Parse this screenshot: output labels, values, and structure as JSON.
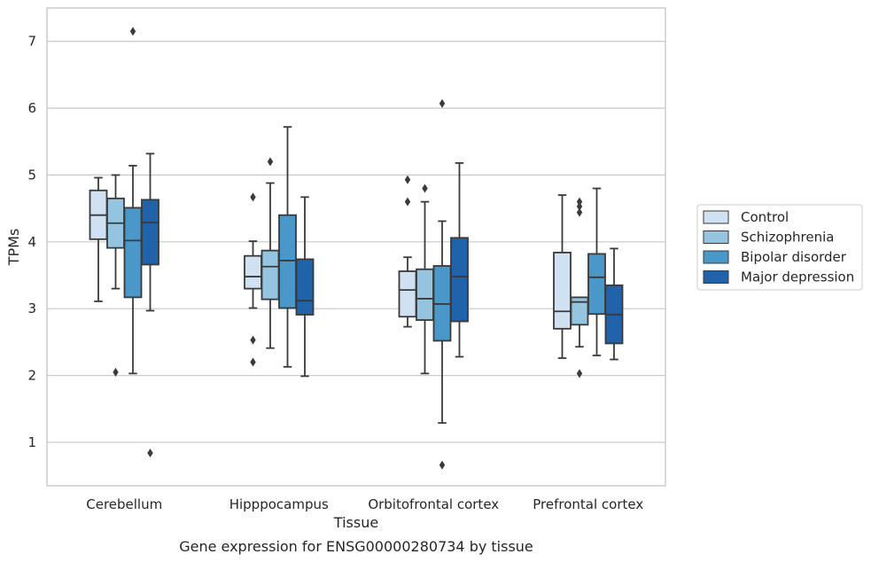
{
  "chart_data": {
    "type": "box",
    "xlabel": "Tissue",
    "ylabel": "TPMs",
    "caption": "Gene expression for ENSG00000280734 by tissue",
    "ylim": [
      0.35,
      7.5
    ],
    "yticks": [
      1,
      2,
      3,
      4,
      5,
      6,
      7
    ],
    "grid": "horizontal",
    "legend_position": "right",
    "categories": [
      "Cerebellum",
      "Hipppocampus",
      "Orbitofrontal cortex",
      "Prefrontal cortex"
    ],
    "series": [
      {
        "name": "Control",
        "color": "#d0e1f2",
        "boxes": [
          {
            "whislo": 3.11,
            "q1": 4.04,
            "med": 4.4,
            "q3": 4.77,
            "whishi": 4.96,
            "fliers": []
          },
          {
            "whislo": 3.01,
            "q1": 3.3,
            "med": 3.48,
            "q3": 3.79,
            "whishi": 4.01,
            "fliers": [
              4.67,
              2.53,
              2.2
            ]
          },
          {
            "whislo": 2.73,
            "q1": 2.88,
            "med": 3.28,
            "q3": 3.56,
            "whishi": 3.77,
            "fliers": [
              4.93,
              4.6
            ]
          },
          {
            "whislo": 2.26,
            "q1": 2.7,
            "med": 2.96,
            "q3": 3.84,
            "whishi": 4.7,
            "fliers": []
          }
        ]
      },
      {
        "name": "Schizophrenia",
        "color": "#94c4df",
        "boxes": [
          {
            "whislo": 3.3,
            "q1": 3.91,
            "med": 4.28,
            "q3": 4.65,
            "whishi": 5.0,
            "fliers": [
              2.05
            ]
          },
          {
            "whislo": 2.41,
            "q1": 3.14,
            "med": 3.63,
            "q3": 3.87,
            "whishi": 4.88,
            "fliers": [
              5.2
            ]
          },
          {
            "whislo": 2.03,
            "q1": 2.83,
            "med": 3.15,
            "q3": 3.59,
            "whishi": 4.6,
            "fliers": [
              4.8
            ]
          },
          {
            "whislo": 2.43,
            "q1": 2.76,
            "med": 3.1,
            "q3": 3.17,
            "whishi": 3.17,
            "fliers": [
              4.6,
              4.53,
              4.44,
              2.03
            ]
          }
        ]
      },
      {
        "name": "Bipolar disorder",
        "color": "#4a98c9",
        "boxes": [
          {
            "whislo": 2.03,
            "q1": 3.17,
            "med": 4.02,
            "q3": 4.51,
            "whishi": 5.14,
            "fliers": [
              7.15
            ]
          },
          {
            "whislo": 2.13,
            "q1": 3.01,
            "med": 3.72,
            "q3": 4.4,
            "whishi": 5.72,
            "fliers": []
          },
          {
            "whislo": 1.29,
            "q1": 2.52,
            "med": 3.07,
            "q3": 3.64,
            "whishi": 4.31,
            "fliers": [
              6.07,
              0.66
            ]
          },
          {
            "whislo": 2.3,
            "q1": 2.92,
            "med": 3.47,
            "q3": 3.82,
            "whishi": 4.8,
            "fliers": []
          }
        ]
      },
      {
        "name": "Major depression",
        "color": "#2163aa",
        "boxes": [
          {
            "whislo": 2.97,
            "q1": 3.66,
            "med": 4.29,
            "q3": 4.63,
            "whishi": 5.32,
            "fliers": [
              0.84
            ]
          },
          {
            "whislo": 1.99,
            "q1": 2.91,
            "med": 3.12,
            "q3": 3.74,
            "whishi": 4.67,
            "fliers": []
          },
          {
            "whislo": 2.28,
            "q1": 2.81,
            "med": 3.48,
            "q3": 4.06,
            "whishi": 5.18,
            "fliers": []
          },
          {
            "whislo": 2.24,
            "q1": 2.48,
            "med": 2.91,
            "q3": 3.35,
            "whishi": 3.9,
            "fliers": []
          }
        ]
      }
    ]
  }
}
